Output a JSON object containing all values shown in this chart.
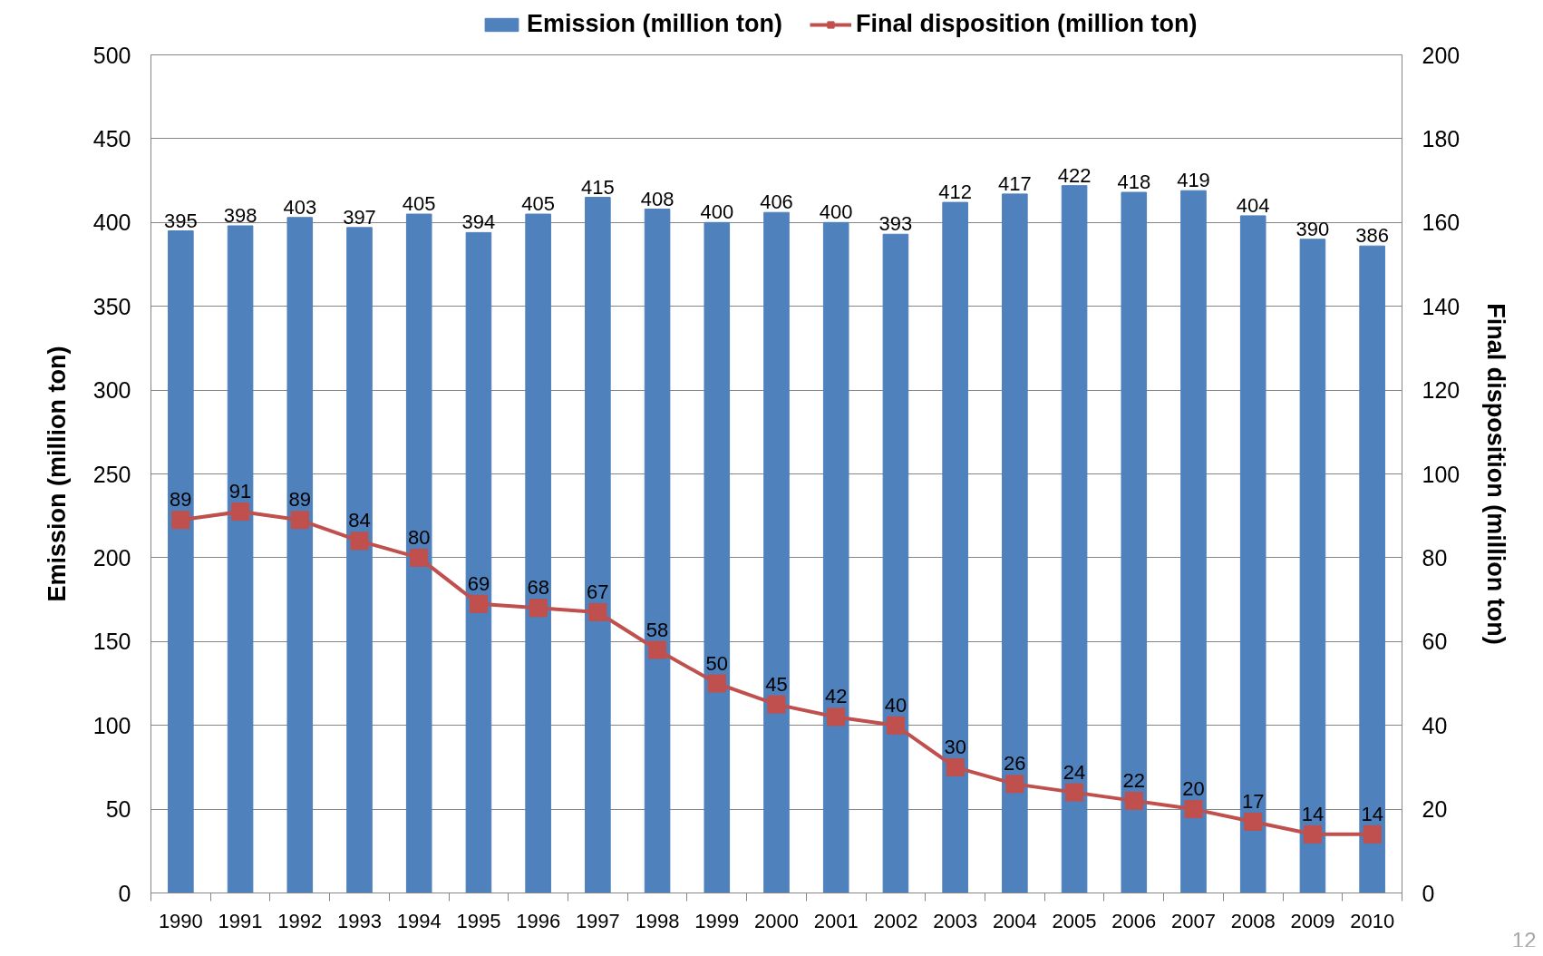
{
  "chart_data": {
    "type": "bar",
    "categories": [
      "1990",
      "1991",
      "1992",
      "1993",
      "1994",
      "1995",
      "1996",
      "1997",
      "1998",
      "1999",
      "2000",
      "2001",
      "2002",
      "2003",
      "2004",
      "2005",
      "2006",
      "2007",
      "2008",
      "2009",
      "2010"
    ],
    "series": [
      {
        "name": "Emission (million ton)",
        "color": "#4f81bd",
        "values": [
          395,
          398,
          403,
          397,
          405,
          394,
          405,
          415,
          408,
          400,
          406,
          400,
          393,
          412,
          417,
          422,
          418,
          419,
          404,
          390,
          386
        ]
      },
      {
        "name": "Final disposition (million ton)",
        "type": "line",
        "axis": "y2",
        "color": "#c0504d",
        "values": [
          89,
          91,
          89,
          84,
          80,
          69,
          68,
          67,
          58,
          50,
          45,
          42,
          40,
          30,
          26,
          24,
          22,
          20,
          17,
          14,
          14
        ]
      }
    ],
    "ylabel": "Emission (million ton)",
    "y2label": "Final disposition (million ton)",
    "ylim": [
      0,
      500
    ],
    "yticks": [
      0,
      50,
      100,
      150,
      200,
      250,
      300,
      350,
      400,
      450,
      500
    ],
    "y2lim": [
      0,
      200
    ],
    "y2ticks": [
      0,
      20,
      40,
      60,
      80,
      100,
      120,
      140,
      160,
      180,
      200
    ],
    "grid": "y",
    "legend": "top",
    "marker": "square",
    "line_style": "solid",
    "data_labels": true,
    "annotations": [
      "12"
    ]
  }
}
